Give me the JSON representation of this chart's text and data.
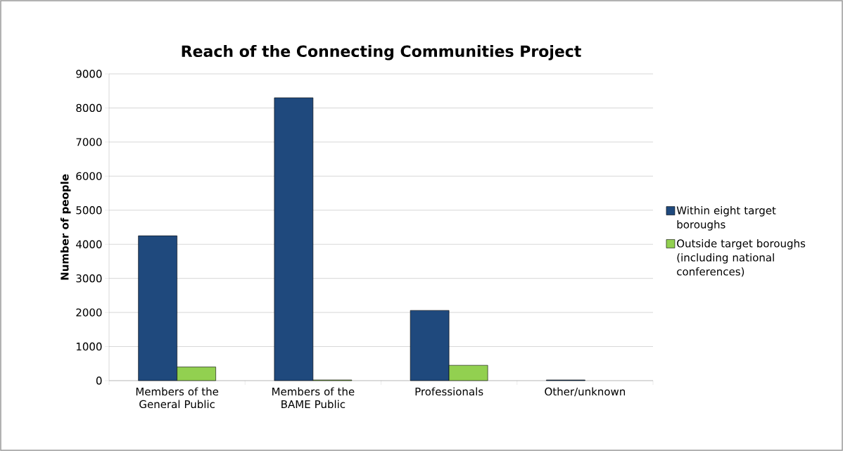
{
  "chart_data": {
    "type": "bar",
    "title": "Reach of the Connecting Communities Project",
    "ylabel": "Number of people",
    "categories": [
      "Members of the General Public",
      "Members of the BAME Public",
      "Professionals",
      "Other/unknown"
    ],
    "series": [
      {
        "name": "Within eight target boroughs",
        "color": "#1f497d",
        "values": [
          4250,
          8300,
          2060,
          20
        ]
      },
      {
        "name": "Outside target boroughs (including national conferences)",
        "color": "#92d050",
        "values": [
          400,
          20,
          450,
          null
        ]
      }
    ],
    "ylim": [
      0,
      9000
    ],
    "yticks": [
      0,
      1000,
      2000,
      3000,
      4000,
      5000,
      6000,
      7000,
      8000,
      9000
    ],
    "grid": "y",
    "legend": "right"
  }
}
